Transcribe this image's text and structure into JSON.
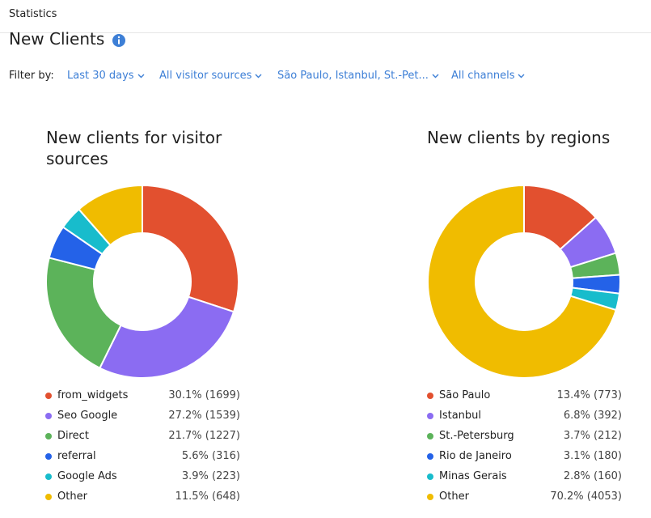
{
  "header": {
    "breadcrumb": "Statistics",
    "title": "New Clients"
  },
  "filters": {
    "label": "Filter by:",
    "items": [
      "Last 30 days",
      "All visitor sources",
      "São Paulo, Istanbul, St.-Pet...",
      "All channels"
    ]
  },
  "chart_data": [
    {
      "type": "pie",
      "title": "New clients for visitor sources",
      "categories": [
        "from_widgets",
        "Seo Google",
        "Direct",
        "referral",
        "Google Ads",
        "Other"
      ],
      "values": [
        1699,
        1539,
        1227,
        316,
        223,
        648
      ],
      "value_labels": [
        "30.1% (1699)",
        "27.2% (1539)",
        "21.7% (1227)",
        "5.6% (316)",
        "3.9% (223)",
        "11.5% (648)"
      ],
      "colors": [
        "#e2502f",
        "#8b6cf2",
        "#5cb35a",
        "#2462e8",
        "#18bccc",
        "#f0bc00"
      ]
    },
    {
      "type": "pie",
      "title": "New clients by regions",
      "categories": [
        "São Paulo",
        "Istanbul",
        "St.-Petersburg",
        "Rio de Janeiro",
        "Minas Gerais",
        "Other"
      ],
      "values": [
        773,
        392,
        212,
        180,
        160,
        4053
      ],
      "value_labels": [
        "13.4% (773)",
        "6.8% (392)",
        "3.7% (212)",
        "3.1% (180)",
        "2.8% (160)",
        "70.2% (4053)"
      ],
      "colors": [
        "#e2502f",
        "#8b6cf2",
        "#5cb35a",
        "#2462e8",
        "#18bccc",
        "#f0bc00"
      ]
    }
  ]
}
